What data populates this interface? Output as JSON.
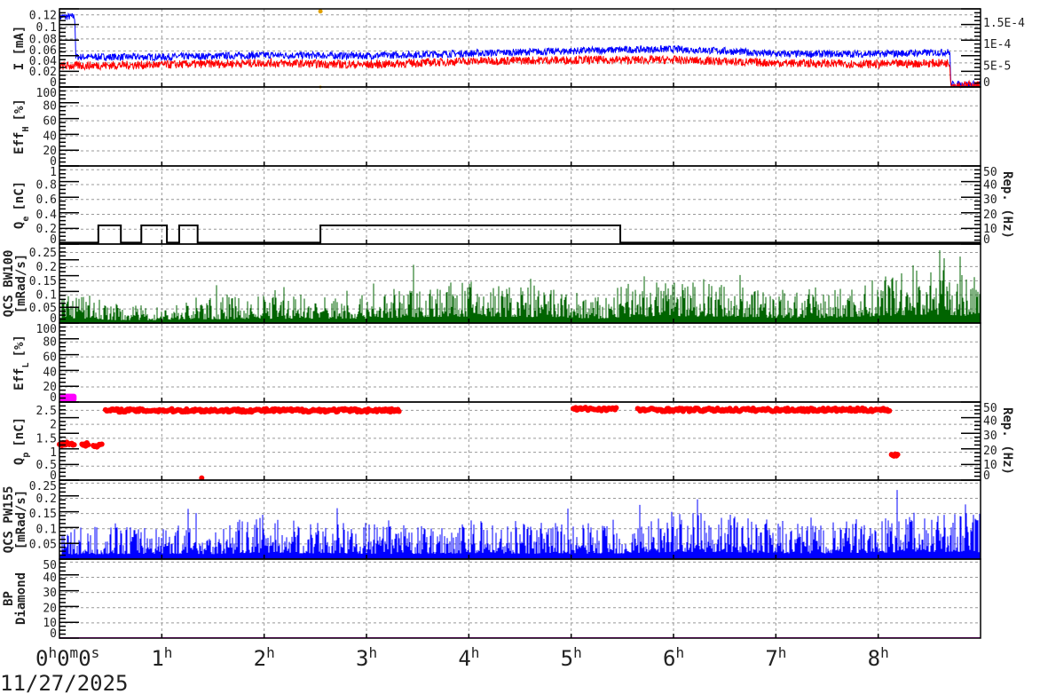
{
  "time_axis": {
    "unit": "h",
    "range": [
      0,
      9
    ],
    "tick_labels": [
      "0h0m0s",
      "1h",
      "2h",
      "3h",
      "4h",
      "5h",
      "6h",
      "7h",
      "8h"
    ],
    "date_label": "11/27/2025"
  },
  "chart_data": [
    {
      "type": "line",
      "ylabel": "I [mA]",
      "ylim": [
        0,
        0.13
      ],
      "yticks": [
        "0",
        "0.02",
        "0.04",
        "0.06",
        "0.08",
        "0.1",
        "0.12"
      ],
      "yvals": [
        0,
        0.02,
        0.04,
        0.06,
        0.08,
        0.1,
        0.12
      ],
      "right_axis": {
        "ylim": [
          0,
          0.000182
        ],
        "ticks": [
          "0",
          "5E-5",
          "1E-4",
          "1.5E-4"
        ],
        "vals": [
          0,
          5e-05,
          0.0001,
          0.00015
        ]
      },
      "series": [
        {
          "color": "#0000ff",
          "x": [
            0,
            0.15,
            0.16,
            1,
            2,
            3,
            4,
            5,
            5.5,
            6,
            6.5,
            7,
            8,
            8.7,
            8.71,
            9
          ],
          "y": [
            0.117,
            0.117,
            0.05,
            0.05,
            0.053,
            0.052,
            0.056,
            0.06,
            0.062,
            0.063,
            0.06,
            0.055,
            0.055,
            0.058,
            0.004,
            0.004
          ],
          "noise": 0.006
        },
        {
          "color": "#ff0000",
          "x": [
            0,
            1,
            2,
            3,
            4,
            5,
            6,
            7,
            8,
            8.7,
            8.71,
            9
          ],
          "y": [
            0.035,
            0.037,
            0.04,
            0.037,
            0.043,
            0.045,
            0.045,
            0.04,
            0.038,
            0.04,
            0.003,
            0.003
          ],
          "noise": 0.007
        }
      ],
      "markers": [
        {
          "color": "#e0a000",
          "x": 2.55,
          "y": 0.126
        }
      ]
    },
    {
      "type": "line",
      "ylabel": "Eff",
      "ylabel_sub": "H",
      "ylabel_suffix": "[%]",
      "ylim": [
        0,
        105
      ],
      "yticks": [
        "0",
        "20",
        "40",
        "60",
        "80",
        "100"
      ],
      "yvals": [
        0,
        20,
        40,
        60,
        80,
        100
      ],
      "series": []
    },
    {
      "type": "line",
      "ylabel": "Q",
      "ylabel_sub": "e",
      "ylabel_suffix": "[nC]",
      "ylim": [
        0,
        1.05
      ],
      "yticks": [
        "0",
        "0.2",
        "0.4",
        "0.6",
        "0.8",
        "1"
      ],
      "yvals": [
        0,
        0.2,
        0.4,
        0.6,
        0.8,
        1
      ],
      "right_axis": {
        "label": "Rep. (Hz)",
        "ylim": [
          0,
          52.5
        ],
        "ticks": [
          "0",
          "10",
          "20",
          "30",
          "40",
          "50"
        ],
        "vals": [
          0,
          10,
          20,
          30,
          40,
          50
        ]
      },
      "steps": {
        "color": "#000000",
        "base": 0.02,
        "level": 0.25,
        "intervals": [
          [
            0.38,
            0.6
          ],
          [
            0.8,
            1.05
          ],
          [
            1.17,
            1.35
          ],
          [
            2.55,
            5.48
          ]
        ]
      }
    },
    {
      "type": "bar",
      "ylabel": "QCS BW100",
      "ylabel2": "[mRad/s]",
      "ylim": [
        0,
        0.28
      ],
      "yticks": [
        "0",
        "0.05",
        "0.1",
        "0.15",
        "0.2",
        "0.25"
      ],
      "yvals": [
        0,
        0.05,
        0.1,
        0.15,
        0.2,
        0.25
      ],
      "color": "#006400",
      "envelope_x": [
        0,
        0.3,
        0.5,
        1,
        1.2,
        1.5,
        2,
        2.5,
        3,
        3.5,
        4,
        4.5,
        5,
        5.3,
        5.5,
        6,
        6.5,
        7,
        7.5,
        8,
        8.5,
        9
      ],
      "envelope_y": [
        0.12,
        0.1,
        0.07,
        0.06,
        0.08,
        0.09,
        0.1,
        0.1,
        0.1,
        0.14,
        0.15,
        0.14,
        0.12,
        0.09,
        0.14,
        0.16,
        0.15,
        0.12,
        0.12,
        0.16,
        0.2,
        0.16
      ]
    },
    {
      "type": "area",
      "ylabel": "Eff",
      "ylabel_sub": "L",
      "ylabel_suffix": "[%]",
      "ylim": [
        0,
        105
      ],
      "yticks": [
        "0",
        "20",
        "40",
        "60",
        "80",
        "100"
      ],
      "yvals": [
        0,
        20,
        40,
        60,
        80,
        100
      ],
      "blob": {
        "color": "#ff00ff",
        "x": [
          0,
          0.15
        ],
        "y": [
          0,
          11
        ]
      }
    },
    {
      "type": "scatter",
      "ylabel": "Q",
      "ylabel_sub": "p",
      "ylabel_suffix": "[nC]",
      "ylim": [
        0,
        2.8
      ],
      "yticks": [
        "0",
        "0.5",
        "1",
        "1.5",
        "2",
        "2.5"
      ],
      "yvals": [
        0,
        0.5,
        1,
        1.5,
        2,
        2.5
      ],
      "right_axis": {
        "label": "Rep. (Hz)",
        "ylim": [
          0,
          52.5
        ],
        "ticks": [
          "0",
          "10",
          "20",
          "30",
          "40",
          "50"
        ],
        "vals": [
          0,
          10,
          20,
          30,
          40,
          50
        ]
      },
      "color": "#ff0000",
      "clusters": [
        {
          "x": [
            0,
            0.15
          ],
          "y": 1.3
        },
        {
          "x": [
            0.22,
            0.28
          ],
          "y": 1.28
        },
        {
          "x": [
            0.33,
            0.42
          ],
          "y": 1.25
        },
        {
          "x": [
            0.45,
            3.33
          ],
          "y": 2.5
        },
        {
          "x": [
            1.39,
            1.4
          ],
          "y": 0.05
        },
        {
          "x": [
            5.02,
            5.45
          ],
          "y": 2.55
        },
        {
          "x": [
            5.65,
            8.12
          ],
          "y": 2.52
        },
        {
          "x": [
            8.13,
            8.2
          ],
          "y": 0.9
        }
      ]
    },
    {
      "type": "bar",
      "ylabel": "QCS PW155",
      "ylabel2": "[mRad/s]",
      "ylim": [
        0,
        0.26
      ],
      "yticks": [
        "0.05",
        "0.1",
        "0.15",
        "0.2",
        "0.25"
      ],
      "yvals": [
        0.05,
        0.1,
        0.15,
        0.2,
        0.25
      ],
      "color": "#0000ff",
      "envelope_x": [
        0,
        0.5,
        1,
        1.5,
        2,
        2.5,
        3,
        3.5,
        4,
        4.5,
        5,
        5.5,
        6,
        6.5,
        7,
        7.5,
        8,
        8.5,
        9
      ],
      "envelope_y": [
        0.1,
        0.11,
        0.12,
        0.11,
        0.14,
        0.12,
        0.12,
        0.11,
        0.13,
        0.12,
        0.12,
        0.12,
        0.16,
        0.15,
        0.13,
        0.12,
        0.14,
        0.16,
        0.15
      ]
    },
    {
      "type": "line",
      "ylabel": "BP",
      "ylabel2": "Diamond",
      "ylim": [
        0,
        52
      ],
      "yticks": [
        "0",
        "10",
        "20",
        "30",
        "40",
        "50"
      ],
      "yvals": [
        0,
        10,
        20,
        30,
        40,
        50
      ],
      "series": [
        {
          "color": "#ff00ff",
          "x": [
            0,
            9
          ],
          "y": [
            0.3,
            0.3
          ],
          "noise": 0
        }
      ]
    }
  ]
}
